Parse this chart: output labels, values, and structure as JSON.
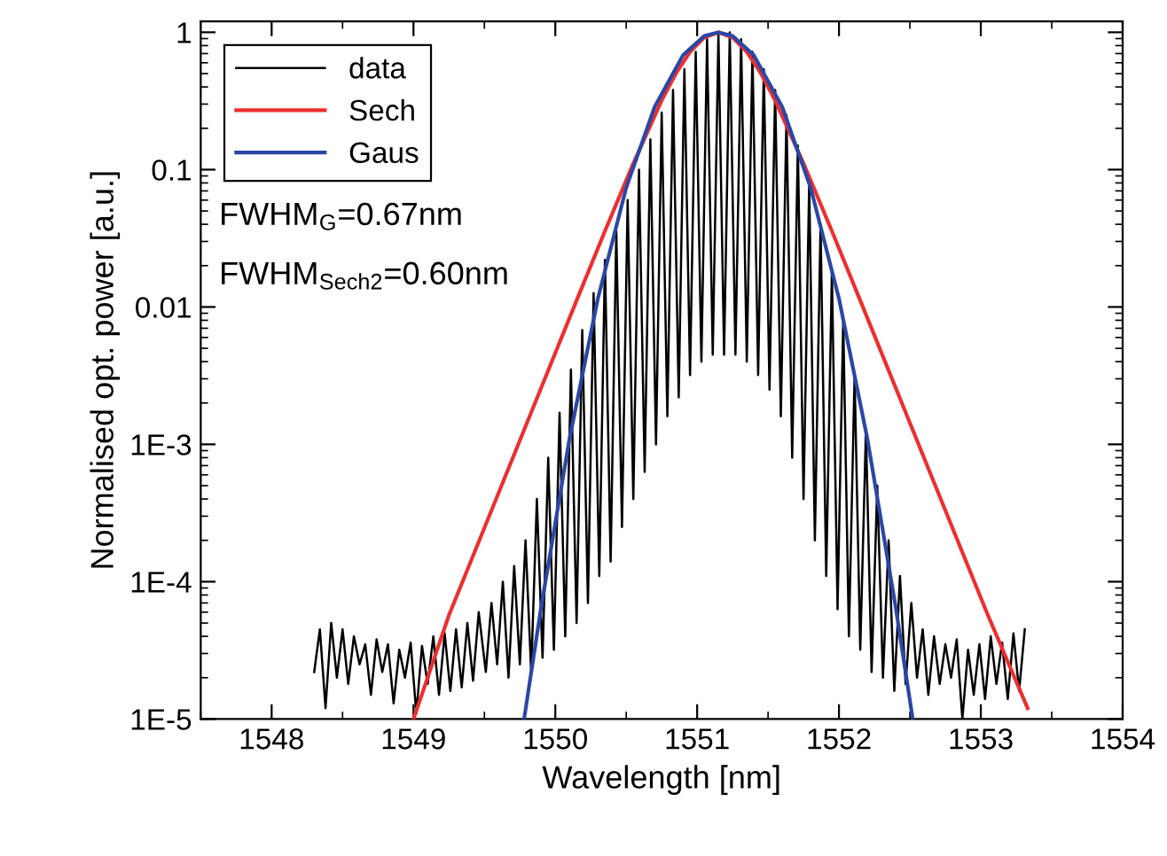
{
  "chart_data": {
    "type": "line",
    "xlabel": "Wavelength [nm]",
    "ylabel": "Normalised opt. power [a.u.]",
    "xlim": [
      1547.5,
      1554
    ],
    "xticks": [
      1548,
      1549,
      1550,
      1551,
      1552,
      1553,
      1554
    ],
    "ylim": [
      1e-05,
      1.2
    ],
    "yticks": [
      {
        "value": 1e-05,
        "label": "1E-5"
      },
      {
        "value": 0.0001,
        "label": "1E-4"
      },
      {
        "value": 0.001,
        "label": "1E-3"
      },
      0.01,
      0.1,
      1
    ],
    "log": "y",
    "legend": "top left",
    "grid": false,
    "annotations": [
      "FWHM$_{G}$=0.67nm",
      "FWHM$_{Sech2}$=0.60nm"
    ],
    "series": [
      {
        "name": "data",
        "color": "#000000",
        "x": [
          1548.3,
          1548.34,
          1548.38,
          1548.42,
          1548.46,
          1548.5,
          1548.54,
          1548.58,
          1548.62,
          1548.66,
          1548.7,
          1548.74,
          1548.78,
          1548.82,
          1548.86,
          1548.9,
          1548.94,
          1548.98,
          1549.02,
          1549.06,
          1549.1,
          1549.14,
          1549.18,
          1549.22,
          1549.26,
          1549.3,
          1549.34,
          1549.38,
          1549.42,
          1549.46,
          1549.51,
          1549.55,
          1549.59,
          1549.63,
          1549.67,
          1549.71,
          1549.75,
          1549.79,
          1549.83,
          1549.87,
          1549.91,
          1549.95,
          1549.99,
          1550.03,
          1550.07,
          1550.11,
          1550.15,
          1550.19,
          1550.23,
          1550.27,
          1550.31,
          1550.35,
          1550.39,
          1550.43,
          1550.47,
          1550.51,
          1550.55,
          1550.59,
          1550.63,
          1550.67,
          1550.71,
          1550.75,
          1550.79,
          1550.83,
          1550.87,
          1550.91,
          1550.95,
          1550.99,
          1551.03,
          1551.07,
          1551.11,
          1551.15,
          1551.19,
          1551.23,
          1551.27,
          1551.31,
          1551.35,
          1551.39,
          1551.43,
          1551.47,
          1551.51,
          1551.55,
          1551.59,
          1551.63,
          1551.67,
          1551.71,
          1551.75,
          1551.79,
          1551.83,
          1551.87,
          1551.91,
          1551.95,
          1551.99,
          1552.03,
          1552.07,
          1552.11,
          1552.15,
          1552.19,
          1552.23,
          1552.27,
          1552.31,
          1552.35,
          1552.39,
          1552.43,
          1552.47,
          1552.51,
          1552.55,
          1552.59,
          1552.63,
          1552.67,
          1552.71,
          1552.75,
          1552.79,
          1552.83,
          1552.87,
          1552.91,
          1552.95,
          1552.99,
          1553.03,
          1553.07,
          1553.11,
          1553.15,
          1553.19,
          1553.23,
          1553.27,
          1553.31
        ],
        "values": [
          2.2e-05,
          4.5e-05,
          1.2e-05,
          5e-05,
          2e-05,
          4.5e-05,
          1.8e-05,
          4e-05,
          2.5e-05,
          3.5e-05,
          1.5e-05,
          3.8e-05,
          2.2e-05,
          3.5e-05,
          1.3e-05,
          3.2e-05,
          2e-05,
          3.6e-05,
          1.1e-05,
          3.4e-05,
          1.8e-05,
          4e-05,
          1.5e-05,
          4.2e-05,
          1.6e-05,
          4.5e-05,
          1.7e-05,
          5e-05,
          1.9e-05,
          6e-05,
          2.2e-05,
          7e-05,
          2.5e-05,
          0.0001,
          2e-05,
          0.00013,
          2.5e-05,
          0.0002,
          2.2e-05,
          0.0004,
          2.8e-05,
          0.0008,
          3.2e-05,
          0.0017,
          4e-05,
          0.0035,
          5e-05,
          0.0068,
          7e-05,
          0.0126,
          0.00011,
          0.022,
          0.00014,
          0.036,
          0.00025,
          0.06,
          0.0004,
          0.1,
          0.00063,
          0.166,
          0.001,
          0.26,
          0.0016,
          0.38,
          0.0022,
          0.54,
          0.0032,
          0.72,
          0.004,
          0.89,
          0.0045,
          0.98,
          0.0045,
          1.0,
          0.0045,
          0.89,
          0.004,
          0.72,
          0.0032,
          0.54,
          0.0025,
          0.38,
          0.0016,
          0.25,
          0.0008,
          0.15,
          0.0004,
          0.08,
          0.0002,
          0.04,
          0.00011,
          0.018,
          6.3e-05,
          0.008,
          4e-05,
          0.0032,
          3.2e-05,
          0.00126,
          2.2e-05,
          0.0005,
          2e-05,
          0.0002,
          1.6e-05,
          0.00011,
          1.8e-05,
          7e-05,
          2e-05,
          4.5e-05,
          1.5e-05,
          4e-05,
          1.8e-05,
          3.5e-05,
          2e-05,
          3.8e-05,
          1e-05,
          3.2e-05,
          1.5e-05,
          3.5e-05,
          1.4e-05,
          4e-05,
          1.8e-05,
          3.6e-05,
          1.4e-05,
          4.2e-05,
          1.6e-05,
          4.5e-05
        ]
      },
      {
        "name": "Sech",
        "color": "#ee2e2e",
        "x": [
          1549.0,
          1549.25,
          1549.55,
          1549.85,
          1550.15,
          1550.35,
          1550.55,
          1550.75,
          1550.85,
          1550.95,
          1551.05,
          1551.15,
          1551.25,
          1551.35,
          1551.45,
          1551.55,
          1551.75,
          1551.95,
          1552.15,
          1552.45,
          1552.75,
          1553.05,
          1553.33
        ],
        "values": [
          1e-05,
          5.7e-05,
          0.00033,
          0.00192,
          0.01115,
          0.0357,
          0.111,
          0.319,
          0.501,
          0.72,
          0.918,
          1.0,
          0.918,
          0.72,
          0.501,
          0.319,
          0.111,
          0.0357,
          0.01115,
          0.00192,
          0.00033,
          5.7e-05,
          1.2e-05
        ]
      },
      {
        "name": "Gaus",
        "color": "#2a47a6",
        "x": [
          1549.78,
          1549.9,
          1550.1,
          1550.3,
          1550.5,
          1550.7,
          1550.9,
          1551.05,
          1551.15,
          1551.25,
          1551.4,
          1551.6,
          1551.8,
          1552.0,
          1552.2,
          1552.4,
          1552.52
        ],
        "values": [
          1e-05,
          6.5e-05,
          0.0011,
          0.0115,
          0.074,
          0.286,
          0.68,
          0.94,
          1.0,
          0.94,
          0.68,
          0.286,
          0.074,
          0.0115,
          0.0011,
          6.5e-05,
          1e-05
        ]
      }
    ]
  }
}
